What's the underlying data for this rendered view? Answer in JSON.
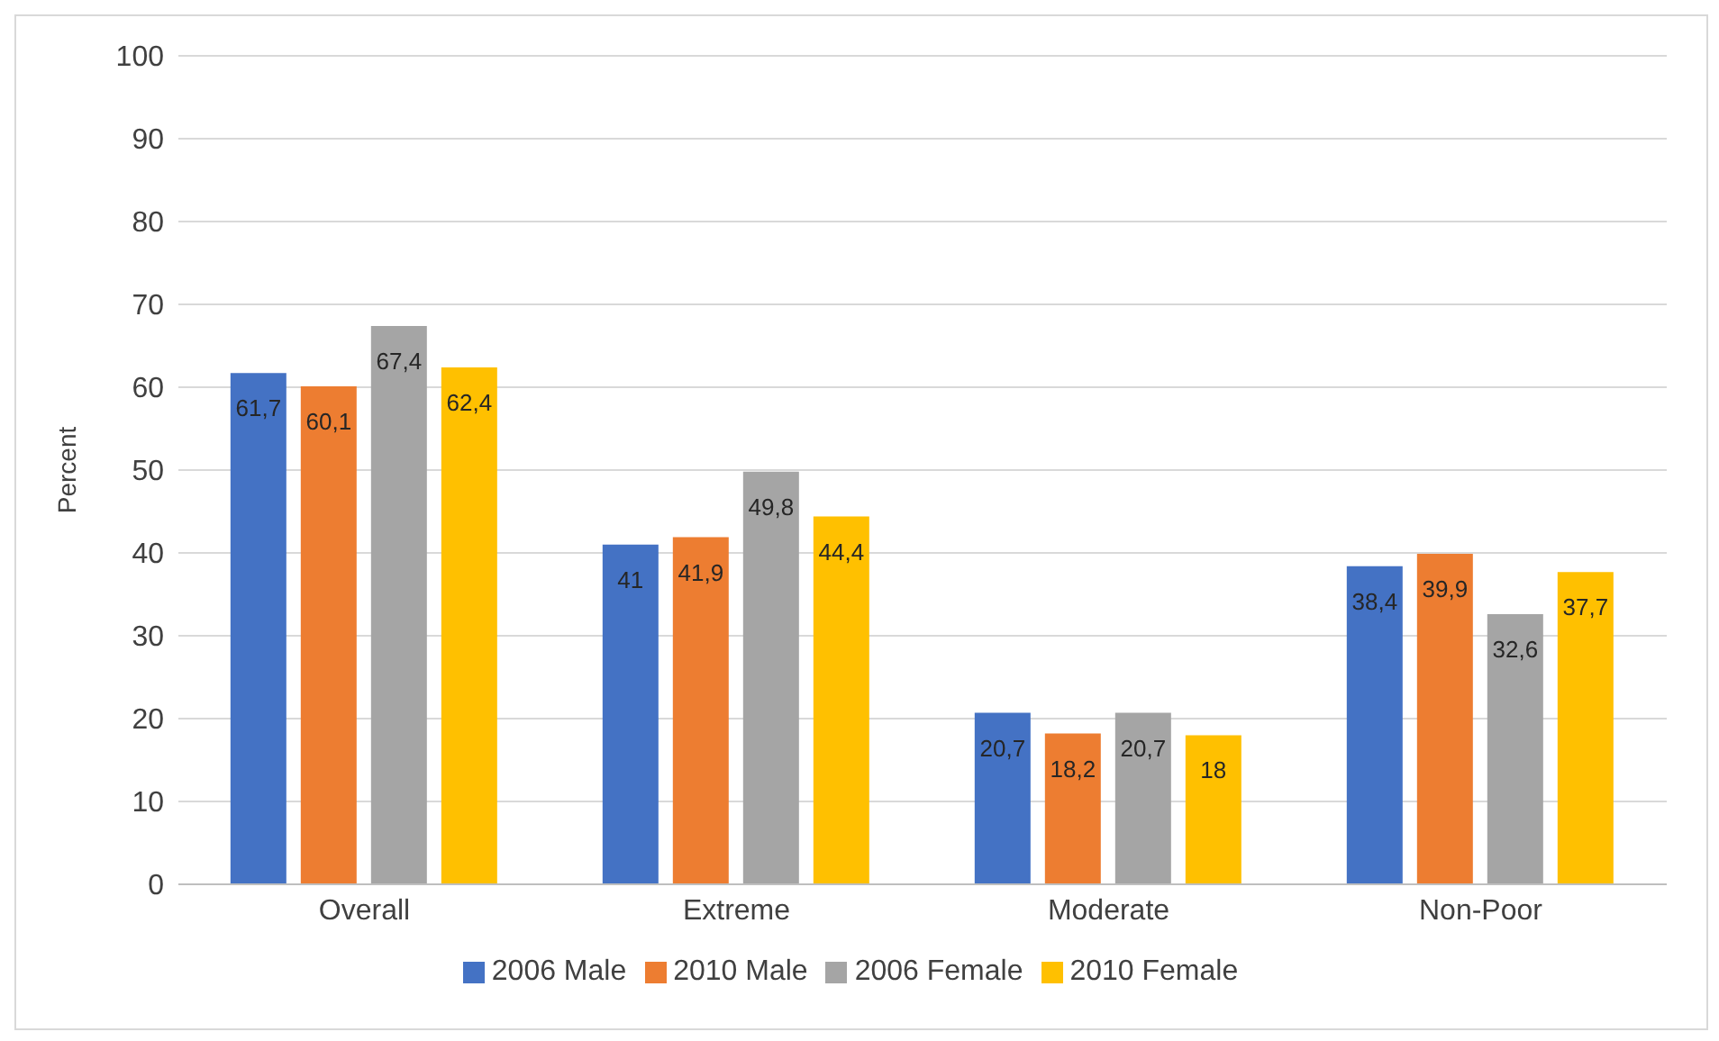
{
  "chart_data": {
    "type": "bar",
    "ylabel": "Percent",
    "categories": [
      "Overall",
      "Extreme",
      "Moderate",
      "Non-Poor"
    ],
    "series": [
      {
        "name": "2006 Male",
        "color": "#4472c4",
        "values": [
          61.7,
          41,
          20.7,
          38.4
        ],
        "value_labels": [
          "61,7",
          "41",
          "20,7",
          "38,4"
        ]
      },
      {
        "name": "2010 Male",
        "color": "#ed7d31",
        "values": [
          60.1,
          41.9,
          18.2,
          39.9
        ],
        "value_labels": [
          "60,1",
          "41,9",
          "18,2",
          "39,9"
        ]
      },
      {
        "name": "2006 Female",
        "color": "#a5a5a5",
        "values": [
          67.4,
          49.8,
          20.7,
          32.6
        ],
        "value_labels": [
          "67,4",
          "49,8",
          "20,7",
          "32,6"
        ]
      },
      {
        "name": "2010 Female",
        "color": "#ffc000",
        "values": [
          62.4,
          44.4,
          18,
          37.7
        ],
        "value_labels": [
          "62,4",
          "44,4",
          "18",
          "37,7"
        ]
      }
    ],
    "ylim": [
      0,
      100
    ],
    "yticks": [
      0,
      10,
      20,
      30,
      40,
      50,
      60,
      70,
      80,
      90,
      100
    ],
    "grid": "y",
    "legend": "bottom"
  }
}
